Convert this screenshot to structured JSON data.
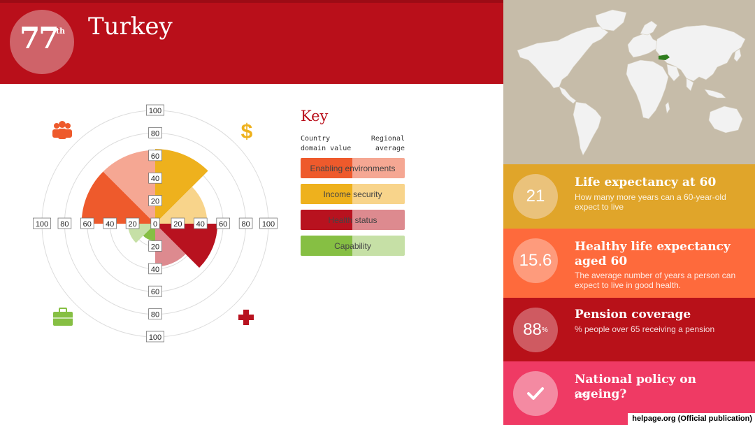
{
  "header": {
    "rank": "77",
    "rank_suffix": "th",
    "country": "Turkey"
  },
  "colors": {
    "header_red": "#b90f1a",
    "enabling": "#ee5a2c",
    "enabling_avg": "#f5a793",
    "income": "#eeb11d",
    "income_avg": "#f8d48b",
    "health": "#b8121f",
    "health_avg": "#dd8a8f",
    "capability": "#86bf43",
    "capability_avg": "#c6e0a6"
  },
  "chart_data": {
    "type": "polar-rose",
    "axis_ticks": [
      "100",
      "80",
      "60",
      "40",
      "20",
      "0"
    ],
    "domains": [
      {
        "name": "Enabling environments",
        "icon": "people-icon",
        "country_value": 65,
        "regional_average": 65
      },
      {
        "name": "Income security",
        "icon": "dollar-icon",
        "country_value": 66,
        "regional_average": 46
      },
      {
        "name": "Health status",
        "icon": "medical-cross-icon",
        "country_value": 55,
        "regional_average": 38
      },
      {
        "name": "Capability",
        "icon": "briefcase-icon",
        "country_value": 15,
        "regional_average": 24
      }
    ]
  },
  "key": {
    "title": "Key",
    "col_left": [
      "Country",
      "domain value"
    ],
    "col_right": [
      "Regional",
      "average"
    ],
    "items": [
      {
        "label": "Enabling environments"
      },
      {
        "label": "Income security"
      },
      {
        "label": "Health status"
      },
      {
        "label": "Capability"
      }
    ]
  },
  "stats": [
    {
      "value": "21",
      "title": "Life expectancy at 60",
      "desc": "How many more years can a 60-year-old expect to live",
      "color": "#e0a52a",
      "circle": "#eac27b"
    },
    {
      "value": "15.6",
      "title": "Healthy life expectancy aged 60",
      "desc": "The average number of years a person can expect to live in good health.",
      "color": "#fe6a3c",
      "circle": "#fe9b7c"
    },
    {
      "value": "88",
      "value_sup": "%",
      "title": "Pension coverage",
      "desc": "% people over 65 receiving a pension",
      "color": "#b81119",
      "circle": "#cf5a61"
    },
    {
      "value": "",
      "title": "National policy on ageing?",
      "desc": "yes",
      "color": "#ef3a64",
      "circle": "#f48aa2"
    }
  ],
  "credit": "helpage.org (Official publication)"
}
